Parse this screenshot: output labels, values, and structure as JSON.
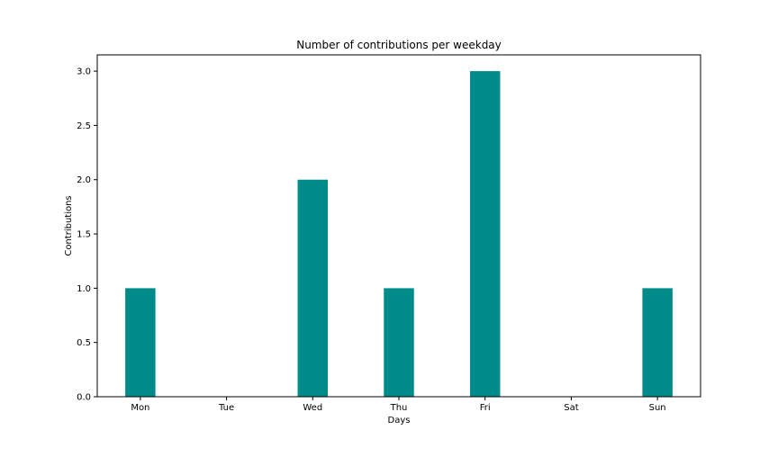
{
  "chart_data": {
    "type": "bar",
    "title": "Number of contributions per weekday",
    "xlabel": "Days",
    "ylabel": "Contributions",
    "categories": [
      "Mon",
      "Tue",
      "Wed",
      "Thu",
      "Fri",
      "Sat",
      "Sun"
    ],
    "values": [
      1,
      0,
      2,
      1,
      3,
      0,
      1
    ],
    "ylim": [
      0,
      3.15
    ],
    "yticks": [
      0.0,
      0.5,
      1.0,
      1.5,
      2.0,
      2.5,
      3.0
    ],
    "ytick_labels": [
      "0.0",
      "0.5",
      "1.0",
      "1.5",
      "2.0",
      "2.5",
      "3.0"
    ],
    "bar_color": "#008b8b",
    "grid": false,
    "legend": "none"
  }
}
